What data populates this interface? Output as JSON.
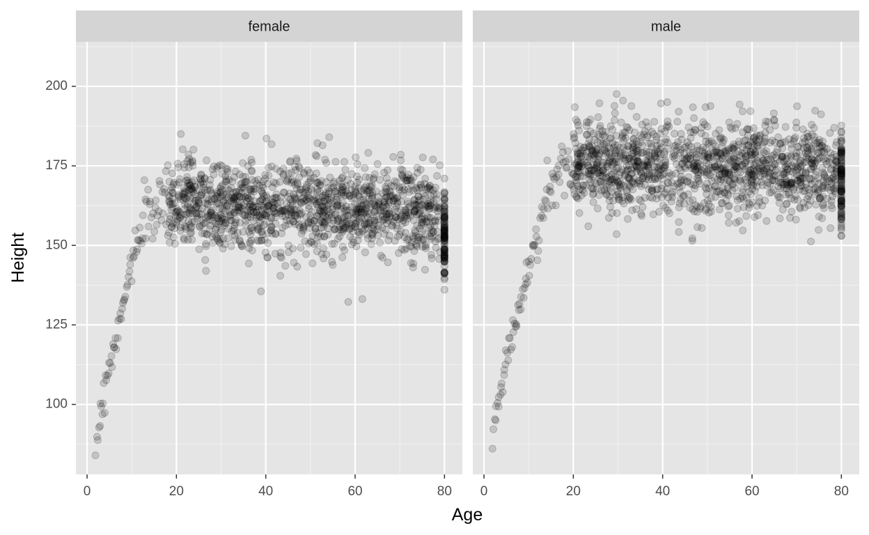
{
  "chart_data": {
    "type": "scatter",
    "xlabel": "Age",
    "ylabel": "Height",
    "xlim": [
      -2.5,
      84
    ],
    "ylim": [
      78,
      214
    ],
    "x_ticks": [
      0,
      20,
      40,
      60,
      80
    ],
    "y_ticks": [
      100,
      125,
      150,
      175,
      200
    ],
    "grid": true,
    "point_color": "#000000",
    "point_alpha": 0.15,
    "panel_background": "#e5e5e5",
    "strip_background": "#d4d4d4",
    "x_tick_labels": [
      "0",
      "20",
      "40",
      "60",
      "80"
    ],
    "y_tick_labels": [
      "100",
      "125",
      "150",
      "175",
      "200"
    ],
    "panels": [
      {
        "label": "female",
        "growth": {
          "x": [
            2,
            3,
            4,
            5,
            6,
            7,
            8,
            9,
            10,
            11,
            12,
            13,
            14,
            16,
            18
          ],
          "y": [
            87,
            97,
            105,
            113,
            118,
            124,
            130,
            138,
            145,
            151,
            155,
            158,
            160,
            162,
            163
          ]
        },
        "adult_mean": 163,
        "adult_sd": 7,
        "adult_decline_per_year": 0.05,
        "age80_cluster_range": [
          135,
          171
        ],
        "y_range": [
          84,
          185
        ]
      },
      {
        "label": "male",
        "growth": {
          "x": [
            2,
            3,
            4,
            5,
            6,
            7,
            8,
            9,
            10,
            11,
            12,
            13,
            14,
            15,
            16,
            17,
            18,
            20
          ],
          "y": [
            89,
            99,
            106,
            114,
            120,
            126,
            131,
            137,
            142,
            147,
            153,
            159,
            165,
            169,
            172,
            174,
            176,
            177
          ]
        },
        "adult_mean": 176,
        "adult_sd": 7.5,
        "adult_decline_per_year": 0.06,
        "age80_cluster_range": [
          153,
          190
        ],
        "y_range": [
          84,
          201
        ]
      }
    ]
  }
}
